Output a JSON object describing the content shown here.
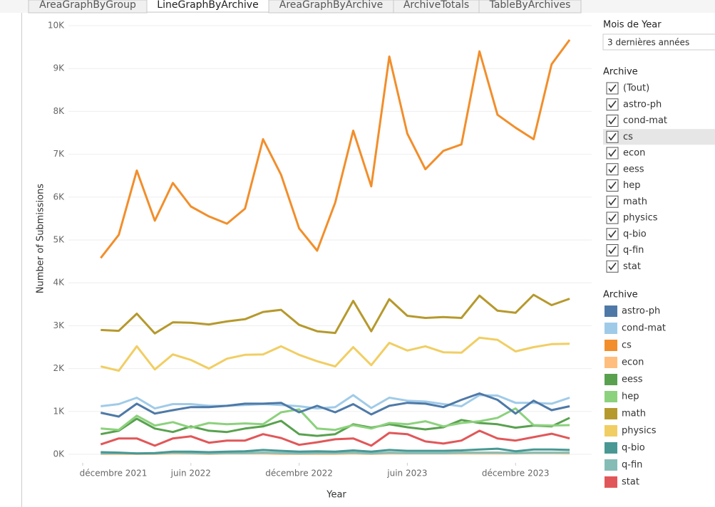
{
  "tabs": [
    "AreaGraphByGroup",
    "LineGraphByArchive",
    "AreaGraphByArchive",
    "ArchiveTotals",
    "TableByArchives"
  ],
  "filter": {
    "title": "Mois de Year",
    "value": "3 dernières années"
  },
  "archive_filter": {
    "title": "Archive",
    "items": [
      "(Tout)",
      "astro-ph",
      "cond-mat",
      "cs",
      "econ",
      "eess",
      "hep",
      "math",
      "physics",
      "q-bio",
      "q-fin",
      "stat"
    ]
  },
  "chart_data": {
    "type": "line",
    "x_label": "Year",
    "y_label": "Number of Submissions",
    "legend_title": "Archive",
    "categories": [
      "décembre 2021",
      null,
      null,
      null,
      null,
      null,
      "juin 2022",
      null,
      null,
      null,
      null,
      null,
      "décembre 2022",
      null,
      null,
      null,
      null,
      null,
      "juin 2023",
      null,
      null,
      null,
      null,
      null,
      "décembre 2023",
      null,
      null,
      null
    ],
    "ylim": [
      -200,
      10100
    ],
    "yticks": [
      {
        "value": 0,
        "label": "0K"
      },
      {
        "value": 1000,
        "label": "1K"
      },
      {
        "value": 2000,
        "label": "2K"
      },
      {
        "value": 3000,
        "label": "3K"
      },
      {
        "value": 4000,
        "label": "4K"
      },
      {
        "value": 5000,
        "label": "5K"
      },
      {
        "value": 6000,
        "label": "6K"
      },
      {
        "value": 7000,
        "label": "7K"
      },
      {
        "value": 8000,
        "label": "8K"
      },
      {
        "value": 9000,
        "label": "9K"
      },
      {
        "value": 10000,
        "label": "10K"
      }
    ],
    "grid": true,
    "series": [
      {
        "name": "astro-ph",
        "color": "#4e79a7",
        "values": [
          null,
          970,
          880,
          1180,
          950,
          1030,
          1100,
          1100,
          1130,
          1180,
          1180,
          1200,
          980,
          1130,
          980,
          1170,
          930,
          1130,
          1200,
          1180,
          1100,
          1270,
          1420,
          1270,
          950,
          1250,
          1030,
          1120
        ]
      },
      {
        "name": "cond-mat",
        "color": "#a0cbe8",
        "values": [
          null,
          1120,
          1170,
          1320,
          1070,
          1170,
          1170,
          1130,
          1130,
          1150,
          1170,
          1150,
          1120,
          1070,
          1100,
          1380,
          1080,
          1320,
          1250,
          1230,
          1170,
          1120,
          1380,
          1370,
          1200,
          1200,
          1180,
          1320
        ]
      },
      {
        "name": "cs",
        "color": "#f28e2b",
        "values": [
          null,
          4580,
          5120,
          6620,
          5450,
          6330,
          5780,
          5550,
          5380,
          5730,
          7350,
          6520,
          5270,
          4750,
          5870,
          7550,
          6250,
          9280,
          7480,
          6650,
          7080,
          7230,
          9400,
          7920,
          7620,
          7350,
          9100,
          9670
        ]
      },
      {
        "name": "econ",
        "color": "#ffbe7d",
        "values": [
          null,
          10,
          10,
          10,
          10,
          20,
          20,
          10,
          20,
          20,
          20,
          10,
          10,
          10,
          10,
          20,
          10,
          20,
          20,
          20,
          20,
          20,
          20,
          20,
          20,
          30,
          30,
          20
        ]
      },
      {
        "name": "eess",
        "color": "#59a14f",
        "values": [
          null,
          470,
          550,
          830,
          600,
          520,
          650,
          550,
          520,
          600,
          650,
          780,
          470,
          430,
          470,
          700,
          620,
          700,
          630,
          580,
          630,
          800,
          730,
          700,
          620,
          670,
          650,
          850
        ]
      },
      {
        "name": "hep",
        "color": "#8cd17d",
        "values": [
          null,
          600,
          570,
          900,
          670,
          750,
          620,
          730,
          700,
          720,
          700,
          980,
          1050,
          600,
          570,
          680,
          600,
          730,
          700,
          770,
          650,
          730,
          770,
          850,
          1070,
          680,
          670,
          680
        ]
      },
      {
        "name": "math",
        "color": "#b6992d",
        "values": [
          null,
          2900,
          2880,
          3280,
          2820,
          3080,
          3070,
          3030,
          3100,
          3150,
          3320,
          3370,
          3020,
          2870,
          2830,
          3580,
          2870,
          3620,
          3230,
          3180,
          3200,
          3180,
          3700,
          3350,
          3300,
          3720,
          3480,
          3630
        ]
      },
      {
        "name": "physics",
        "color": "#f1ce63",
        "values": [
          null,
          2050,
          1950,
          2520,
          1980,
          2330,
          2200,
          2000,
          2230,
          2320,
          2330,
          2520,
          2320,
          2170,
          2050,
          2500,
          2080,
          2600,
          2420,
          2520,
          2380,
          2370,
          2720,
          2670,
          2400,
          2500,
          2570,
          2580
        ]
      },
      {
        "name": "q-bio",
        "color": "#499894",
        "values": [
          null,
          50,
          40,
          20,
          30,
          60,
          60,
          50,
          60,
          70,
          100,
          80,
          60,
          70,
          60,
          90,
          60,
          100,
          80,
          80,
          80,
          90,
          110,
          130,
          70,
          110,
          110,
          100
        ]
      },
      {
        "name": "q-fin",
        "color": "#86bcb6",
        "values": [
          null,
          20,
          30,
          20,
          20,
          40,
          30,
          20,
          30,
          30,
          40,
          30,
          20,
          30,
          30,
          40,
          20,
          40,
          30,
          30,
          30,
          40,
          40,
          40,
          30,
          40,
          40,
          40
        ]
      },
      {
        "name": "stat",
        "color": "#e15759",
        "values": [
          null,
          230,
          370,
          370,
          200,
          370,
          420,
          270,
          320,
          320,
          470,
          380,
          220,
          280,
          350,
          370,
          200,
          500,
          470,
          300,
          250,
          320,
          550,
          370,
          320,
          400,
          480,
          370
        ]
      }
    ]
  }
}
